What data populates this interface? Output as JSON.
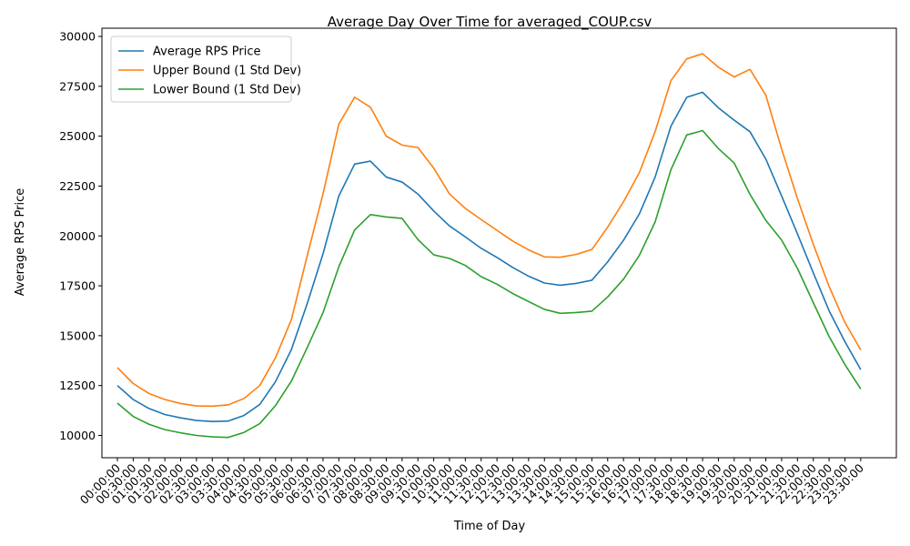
{
  "chart_data": {
    "type": "line",
    "title": "Average Day Over Time for averaged_COUP.csv",
    "xlabel": "Time of Day",
    "ylabel": "Average RPS Price",
    "ylim": [
      9000,
      30500
    ],
    "yticks": [
      10000,
      12500,
      15000,
      17500,
      20000,
      22500,
      25000,
      27500,
      30000
    ],
    "ytick_labels": [
      "10000",
      "12500",
      "15000",
      "17500",
      "20000",
      "22500",
      "25000",
      "27500",
      "30000"
    ],
    "grid": false,
    "legend_position": "top-left",
    "categories": [
      "00:00:00",
      "00:30:00",
      "01:00:00",
      "01:30:00",
      "02:00:00",
      "02:30:00",
      "03:00:00",
      "03:30:00",
      "04:00:00",
      "04:30:00",
      "05:00:00",
      "05:30:00",
      "06:00:00",
      "06:30:00",
      "07:00:00",
      "07:30:00",
      "08:00:00",
      "08:30:00",
      "09:00:00",
      "09:30:00",
      "10:00:00",
      "10:30:00",
      "11:00:00",
      "11:30:00",
      "12:00:00",
      "12:30:00",
      "13:00:00",
      "13:30:00",
      "14:00:00",
      "14:30:00",
      "15:00:00",
      "15:30:00",
      "16:00:00",
      "16:30:00",
      "17:00:00",
      "17:30:00",
      "18:00:00",
      "18:30:00",
      "19:00:00",
      "19:30:00",
      "20:00:00",
      "20:30:00",
      "21:00:00",
      "21:30:00",
      "22:00:00",
      "22:30:00",
      "23:00:00",
      "23:30:00"
    ],
    "series": [
      {
        "name": "Average RPS Price",
        "color": "#1f77b4",
        "values": [
          12500,
          11800,
          11350,
          11050,
          10880,
          10750,
          10700,
          10720,
          11000,
          11550,
          12700,
          14300,
          16600,
          19100,
          22000,
          23600,
          23750,
          22950,
          22700,
          22100,
          21250,
          20500,
          19950,
          19380,
          18920,
          18420,
          17980,
          17640,
          17530,
          17620,
          17780,
          18700,
          19780,
          21100,
          22950,
          25500,
          26950,
          27200,
          26420,
          25800,
          25220,
          23850,
          22000,
          20100,
          18150,
          16250,
          14700,
          13300
        ]
      },
      {
        "name": "Upper Bound (1 Std Dev)",
        "color": "#ff7f0e",
        "values": [
          13400,
          12600,
          12100,
          11800,
          11600,
          11480,
          11470,
          11530,
          11850,
          12500,
          13900,
          15800,
          19000,
          22100,
          25600,
          26950,
          26450,
          25000,
          24550,
          24430,
          23400,
          22100,
          21380,
          20820,
          20280,
          19740,
          19300,
          18950,
          18930,
          19070,
          19320,
          20440,
          21710,
          23170,
          25230,
          27780,
          28880,
          29130,
          28460,
          27970,
          28350,
          27050,
          24350,
          21870,
          19580,
          17470,
          15660,
          14290
        ]
      },
      {
        "name": "Lower Bound (1 Std Dev)",
        "color": "#2ca02c",
        "values": [
          11620,
          10950,
          10560,
          10290,
          10130,
          10000,
          9930,
          9900,
          10150,
          10590,
          11500,
          12720,
          14400,
          16150,
          18450,
          20300,
          21070,
          20950,
          20880,
          19820,
          19050,
          18870,
          18520,
          17960,
          17580,
          17110,
          16710,
          16320,
          16120,
          16160,
          16230,
          16940,
          17830,
          19020,
          20700,
          23320,
          25060,
          25280,
          24380,
          23650,
          22080,
          20780,
          19790,
          18370,
          16660,
          14960,
          13550,
          12330
        ]
      }
    ]
  }
}
